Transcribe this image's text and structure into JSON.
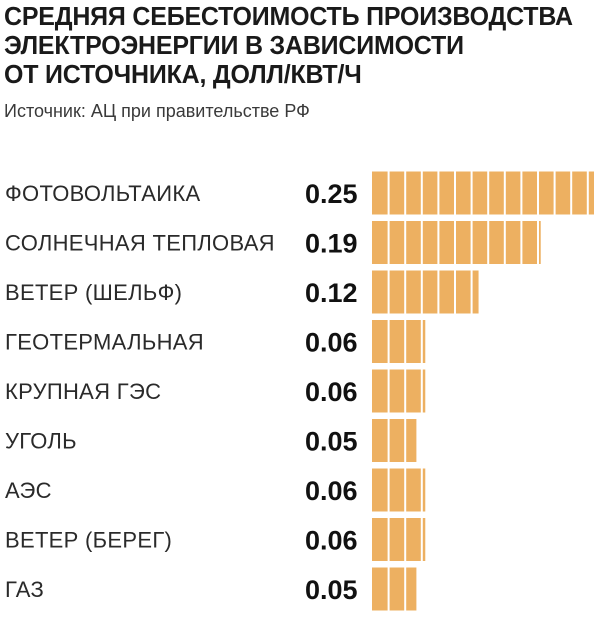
{
  "title_lines": [
    "СРЕДНЯЯ СЕБЕСТОИМОСТЬ ПРОИЗВОДСТВА",
    "ЭЛЕКТРОЭНЕРГИИ В ЗАВИСИМОСТИ",
    "ОТ ИСТОЧНИКА, ДОЛЛ/КВТ/Ч"
  ],
  "source": "Источник: АЦ при правительстве РФ",
  "colors": {
    "bar": "#EDB061",
    "bar_divider": "#ffffff",
    "text": "#1a1a1a"
  },
  "chart_data": {
    "type": "bar",
    "orientation": "horizontal",
    "title": "СРЕДНЯЯ СЕБЕСТОИМОСТЬ ПРОИЗВОДСТВА ЭЛЕКТРОЭНЕРГИИ В ЗАВИСИМОСТИ ОТ ИСТОЧНИКА, ДОЛЛ/КВТ/Ч",
    "categories": [
      "ФОТОВОЛЬТАИКА",
      "СОЛНЕЧНАЯ ТЕПЛОВАЯ",
      "ВЕТЕР (ШЕЛЬФ)",
      "ГЕОТЕРМАЛЬНАЯ",
      "КРУПНАЯ ГЭС",
      "УГОЛЬ",
      "АЭС",
      "ВЕТЕР (БЕРЕГ)",
      "ГАЗ"
    ],
    "values": [
      0.25,
      0.19,
      0.12,
      0.06,
      0.06,
      0.05,
      0.06,
      0.06,
      0.05
    ],
    "value_labels": [
      "0.25",
      "0.19",
      "0.12",
      "0.06",
      "0.06",
      "0.05",
      "0.06",
      "0.06",
      "0.05"
    ],
    "xlim": [
      0,
      0.25
    ],
    "grid": false,
    "legend": "none"
  }
}
